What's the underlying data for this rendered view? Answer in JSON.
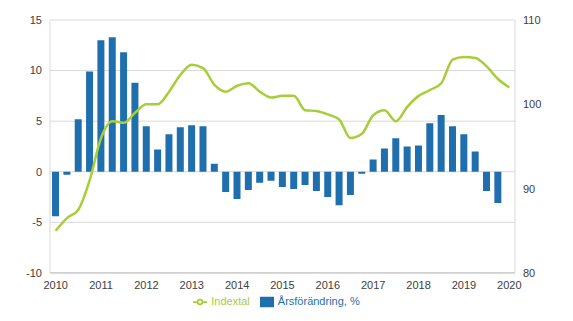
{
  "chart_data": {
    "type": "bar",
    "categories": [
      "2010",
      null,
      null,
      null,
      "2011",
      null,
      null,
      null,
      "2012",
      null,
      null,
      null,
      "2013",
      null,
      null,
      null,
      "2014",
      null,
      null,
      null,
      "2015",
      null,
      null,
      null,
      "2016",
      null,
      null,
      null,
      "2017",
      null,
      null,
      null,
      "2018",
      null,
      null,
      null,
      "2019",
      null,
      null,
      null,
      "2020"
    ],
    "series": [
      {
        "name": "Årsförändring, %",
        "type": "bar",
        "color": "#1f6fae",
        "values": [
          -4.4,
          -0.3,
          5.2,
          9.9,
          13.0,
          13.3,
          11.8,
          8.8,
          4.5,
          2.2,
          3.7,
          4.4,
          4.6,
          4.5,
          0.8,
          -2.0,
          -2.7,
          -1.8,
          -1.1,
          -0.9,
          -1.5,
          -1.7,
          -1.3,
          -1.9,
          -2.5,
          -3.3,
          -2.3,
          -0.2,
          1.2,
          2.3,
          3.3,
          2.5,
          2.6,
          4.8,
          5.6,
          4.5,
          3.7,
          2.0,
          -1.9,
          -3.1,
          null
        ]
      },
      {
        "name": "Indextal",
        "type": "line",
        "axis": "y2",
        "color": "#a6ce39",
        "values": [
          85.0,
          86.5,
          87.5,
          91.0,
          96.0,
          98.0,
          97.8,
          99.0,
          100.0,
          100.0,
          101.5,
          103.5,
          104.7,
          104.3,
          102.3,
          101.5,
          102.2,
          102.5,
          101.5,
          100.8,
          101.0,
          101.0,
          99.3,
          99.2,
          98.8,
          98.2,
          96.0,
          96.5,
          98.7,
          99.3,
          98.0,
          99.7,
          101.0,
          101.7,
          102.5,
          105.3,
          105.6,
          105.5,
          104.5,
          103.0,
          102.0
        ]
      }
    ],
    "ylim": [
      -10,
      15
    ],
    "yticks": [
      -10,
      -5,
      0,
      5,
      10,
      15
    ],
    "y2lim": [
      80,
      110
    ],
    "y2ticks": [
      80,
      90,
      100,
      110
    ],
    "grid": true,
    "legend": "bottom"
  }
}
